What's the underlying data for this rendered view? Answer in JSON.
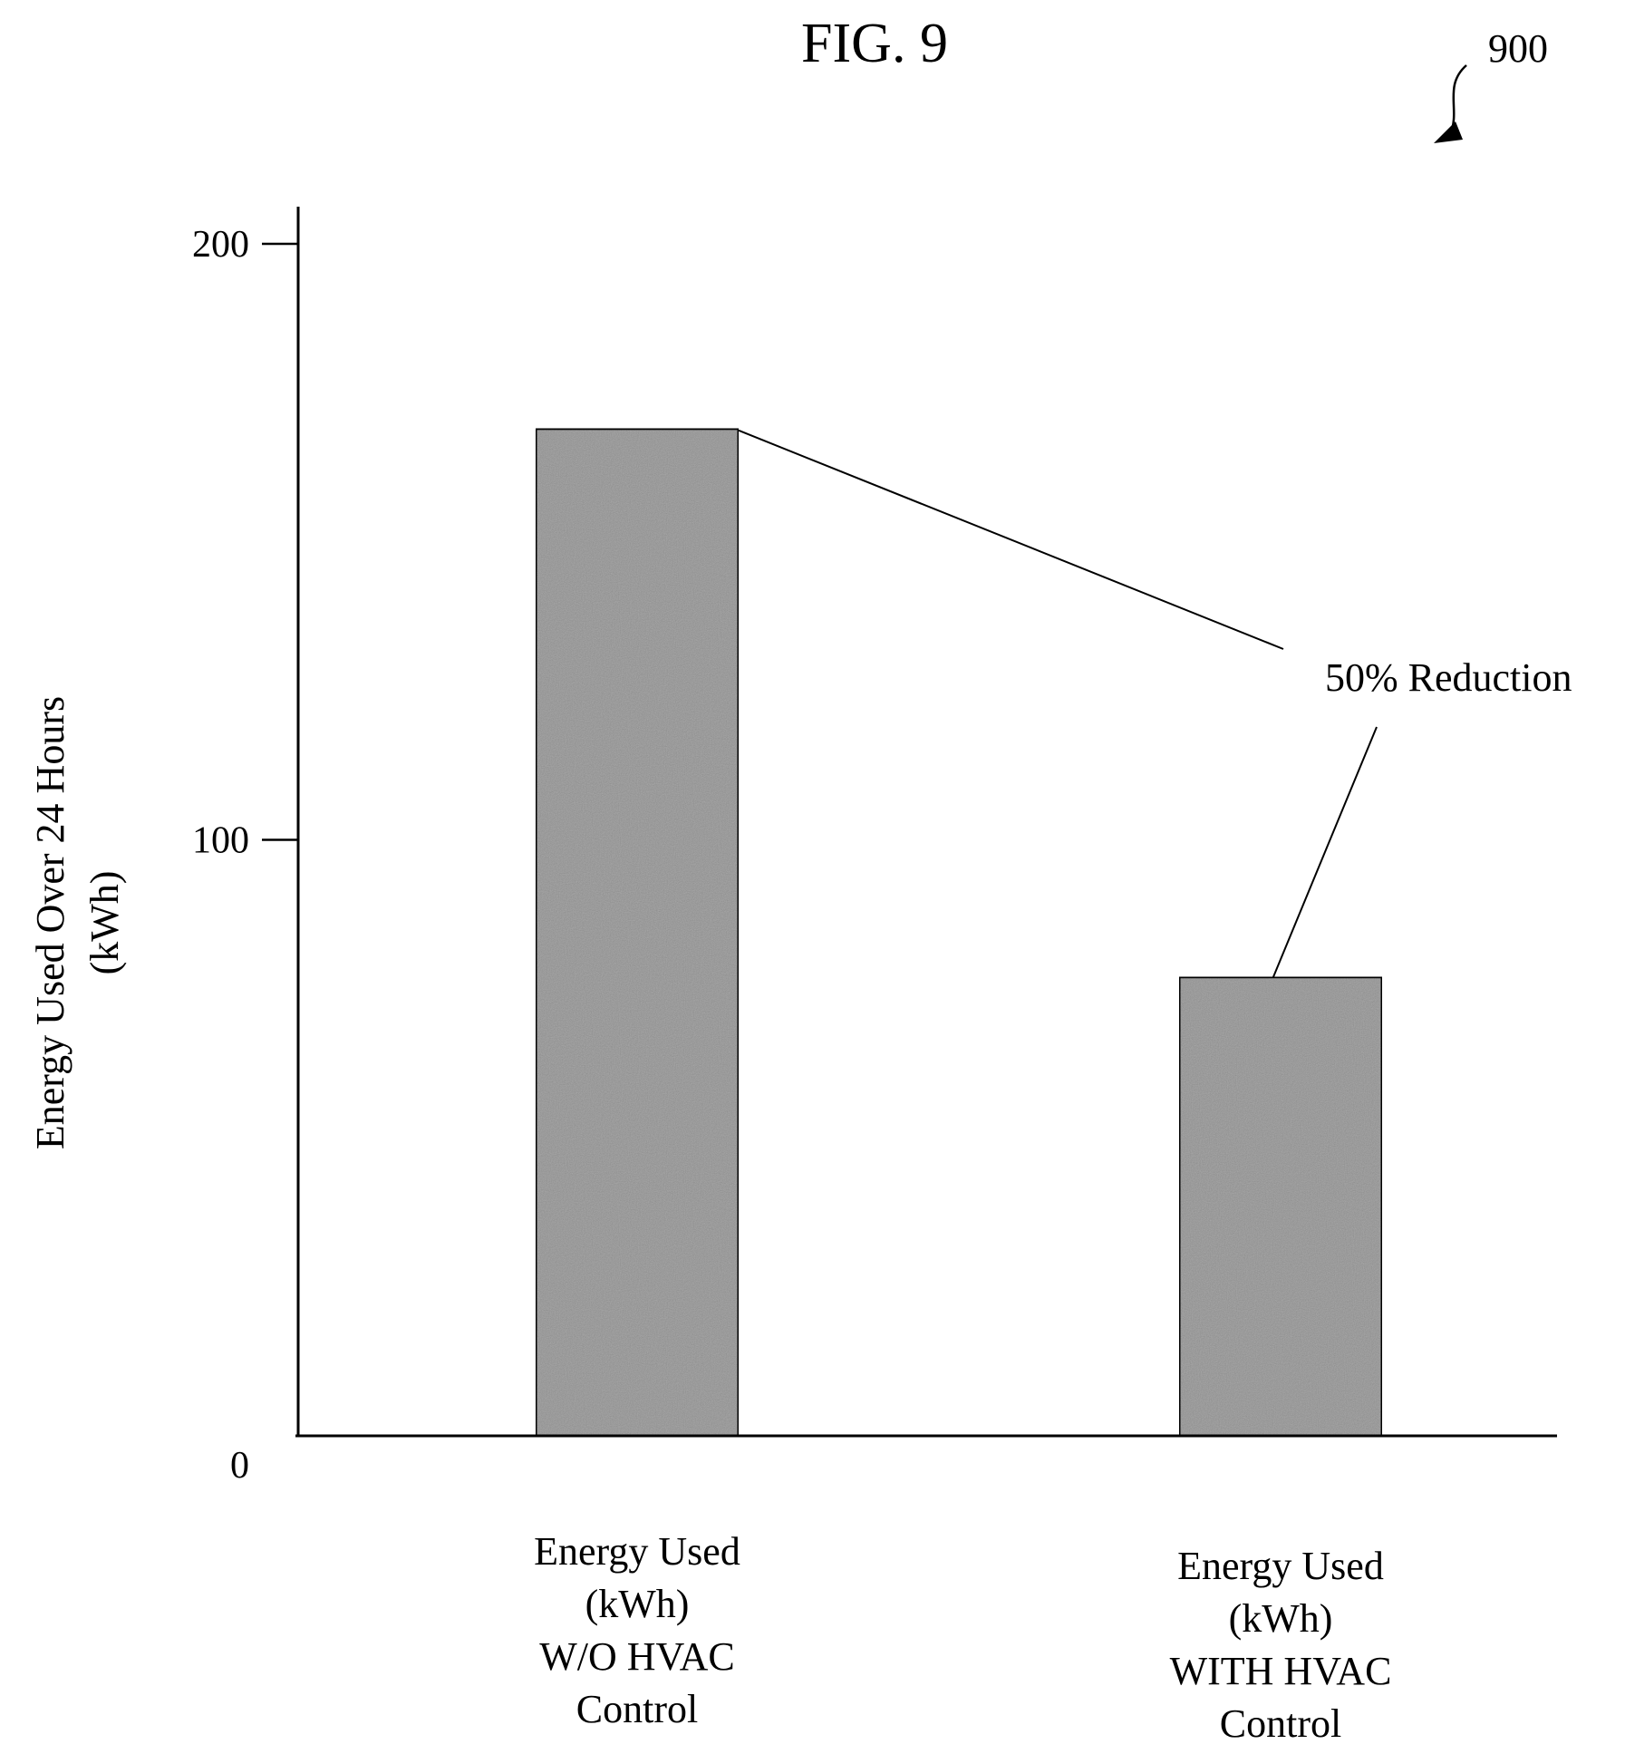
{
  "figure": {
    "title": "FIG. 9",
    "reference_numeral": "900"
  },
  "chart_data": {
    "type": "bar",
    "categories": [
      [
        "Energy Used",
        "(kWh)",
        "W/O HVAC",
        "Control"
      ],
      [
        "Energy Used",
        "(kWh)",
        "WITH HVAC",
        "Control"
      ]
    ],
    "values": [
      169,
      77
    ],
    "ylabel": [
      "Energy Used Over 24 Hours",
      "(kWh)"
    ],
    "xlabel": "",
    "ylim": [
      0,
      200
    ],
    "yticks": [
      0,
      100,
      200
    ],
    "ytick_labels": [
      "0",
      "100",
      "200"
    ],
    "grid": false,
    "legend": "none",
    "bar_fill": "#b3b3b3",
    "annotation": {
      "text": "50% Reduction"
    }
  }
}
